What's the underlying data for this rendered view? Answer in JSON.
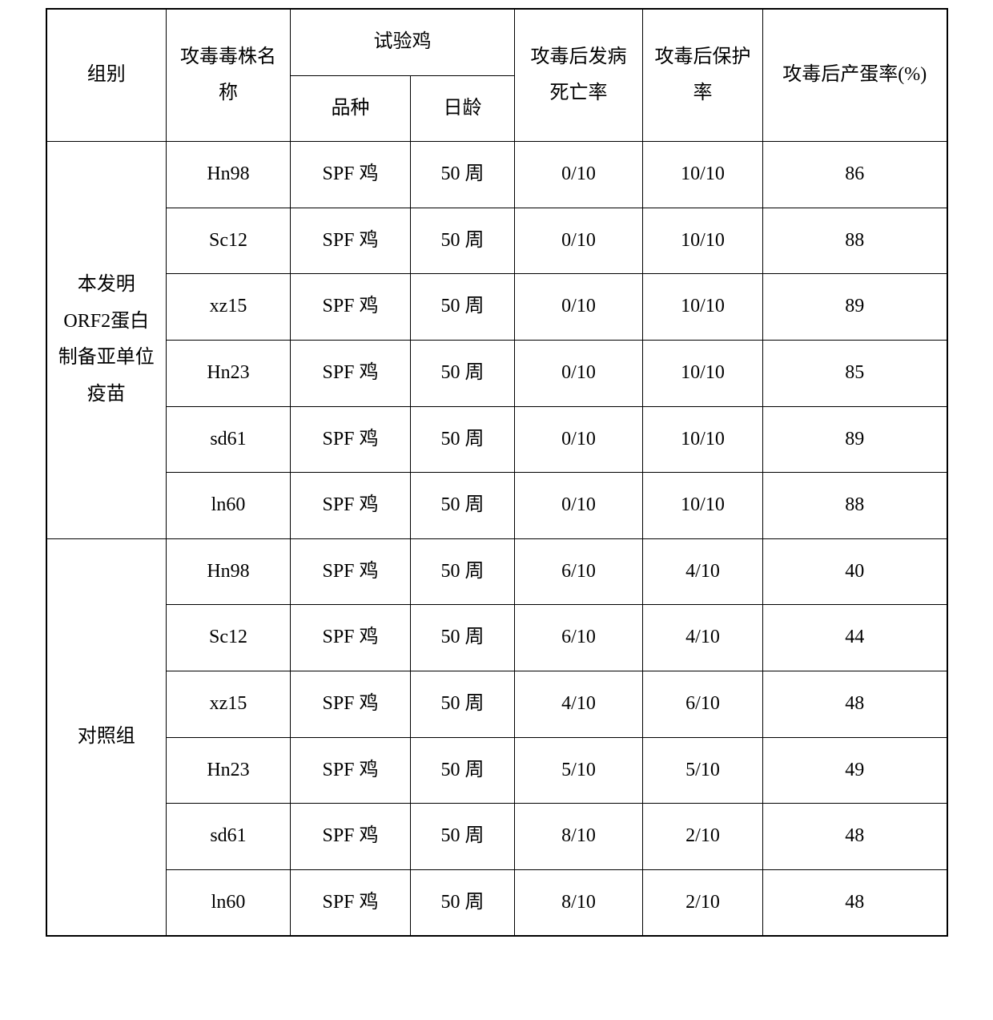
{
  "table": {
    "headers": {
      "group": "组别",
      "strain_name": "攻毒毒株名称",
      "test_chicken": "试验鸡",
      "breed": "品种",
      "age": "日龄",
      "mortality": "攻毒后发病死亡率",
      "protection": "攻毒后保护率",
      "egg_rate": "攻毒后产蛋率(%)"
    },
    "groups": [
      {
        "name": "本发明ORF2蛋白制备亚单位疫苗",
        "rows": [
          {
            "strain": "Hn98",
            "breed": "SPF 鸡",
            "age": "50 周",
            "mortality": "0/10",
            "protection": "10/10",
            "egg_rate": "86"
          },
          {
            "strain": "Sc12",
            "breed": "SPF 鸡",
            "age": "50 周",
            "mortality": "0/10",
            "protection": "10/10",
            "egg_rate": "88"
          },
          {
            "strain": "xz15",
            "breed": "SPF 鸡",
            "age": "50 周",
            "mortality": "0/10",
            "protection": "10/10",
            "egg_rate": "89"
          },
          {
            "strain": "Hn23",
            "breed": "SPF 鸡",
            "age": "50 周",
            "mortality": "0/10",
            "protection": "10/10",
            "egg_rate": "85"
          },
          {
            "strain": "sd61",
            "breed": "SPF 鸡",
            "age": "50 周",
            "mortality": "0/10",
            "protection": "10/10",
            "egg_rate": "89"
          },
          {
            "strain": "ln60",
            "breed": "SPF 鸡",
            "age": "50 周",
            "mortality": "0/10",
            "protection": "10/10",
            "egg_rate": "88"
          }
        ]
      },
      {
        "name": "对照组",
        "rows": [
          {
            "strain": "Hn98",
            "breed": "SPF 鸡",
            "age": "50 周",
            "mortality": "6/10",
            "protection": "4/10",
            "egg_rate": "40"
          },
          {
            "strain": "Sc12",
            "breed": "SPF 鸡",
            "age": "50 周",
            "mortality": "6/10",
            "protection": "4/10",
            "egg_rate": "44"
          },
          {
            "strain": "xz15",
            "breed": "SPF 鸡",
            "age": "50 周",
            "mortality": "4/10",
            "protection": "6/10",
            "egg_rate": "48"
          },
          {
            "strain": "Hn23",
            "breed": "SPF 鸡",
            "age": "50 周",
            "mortality": "5/10",
            "protection": "5/10",
            "egg_rate": "49"
          },
          {
            "strain": "sd61",
            "breed": "SPF 鸡",
            "age": "50 周",
            "mortality": "8/10",
            "protection": "2/10",
            "egg_rate": "48"
          },
          {
            "strain": "ln60",
            "breed": "SPF 鸡",
            "age": "50 周",
            "mortality": "8/10",
            "protection": "2/10",
            "egg_rate": "48"
          }
        ]
      }
    ],
    "styling": {
      "border_color": "#000000",
      "background_color": "#ffffff",
      "text_color": "#000000",
      "font_size": 24,
      "line_height": 1.9,
      "cell_padding_vertical": 18,
      "cell_padding_horizontal": 10,
      "column_widths": {
        "group": 150,
        "strain": 155,
        "breed": 150,
        "age": 130,
        "mortality": 160,
        "protection": 150,
        "eggrate": 230
      }
    }
  }
}
